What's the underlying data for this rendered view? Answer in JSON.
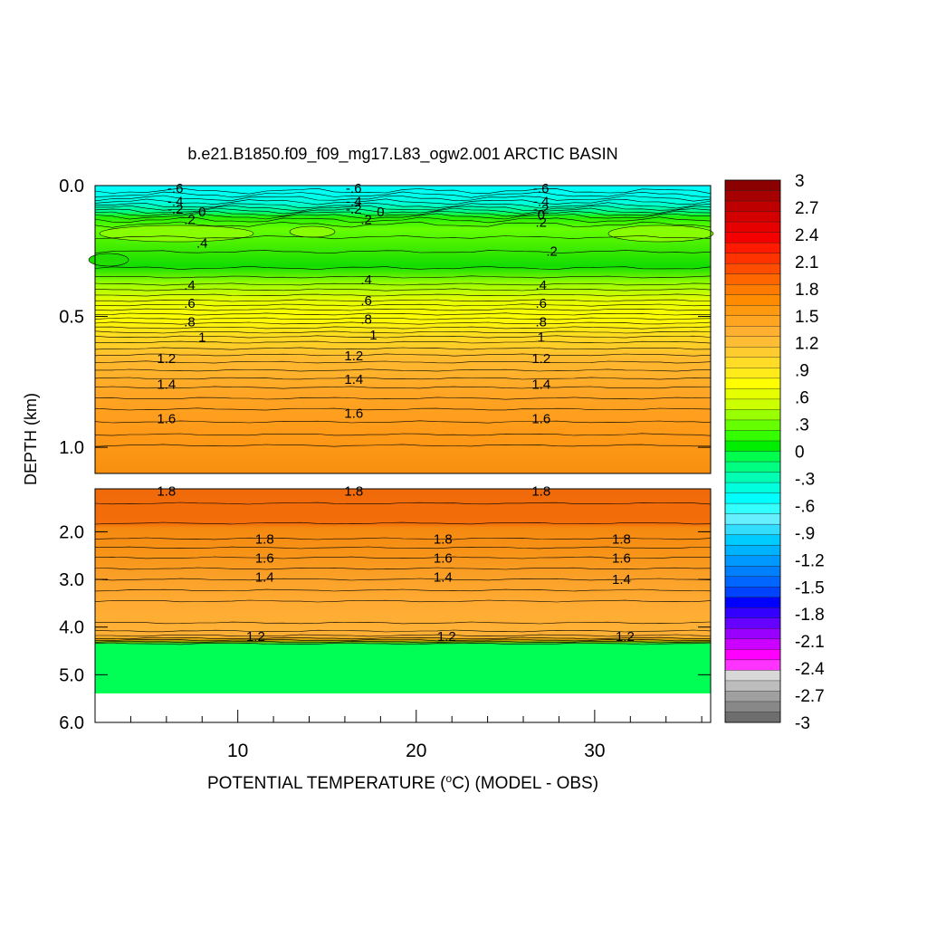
{
  "chart_data": {
    "type": "heatmap",
    "title": "b.e21.B1850.f09_f09_mg17.L83_ogw2.001 ARCTIC BASIN",
    "xlabel": "POTENTIAL TEMPERATURE (",
    "xlabel_sup": "o",
    "xlabel_tail": "C) (MODEL - OBS)",
    "ylabel": "DEPTH (km)",
    "x_ticks": [
      "10",
      "20",
      "30"
    ],
    "x_tick_values": [
      10,
      20,
      30
    ],
    "xlim": [
      2,
      36.5
    ],
    "upper_panel": {
      "ylim": [
        0,
        1.1
      ],
      "y_ticks": [
        "0.0",
        "0.5",
        "1.0"
      ],
      "y_tick_values": [
        0,
        0.5,
        1.0
      ],
      "contour_labels": [
        {
          "text": "-.6",
          "x": 6.5,
          "y": 0.01
        },
        {
          "text": "-.4",
          "x": 6.5,
          "y": 0.06
        },
        {
          "text": "-.2",
          "x": 6.5,
          "y": 0.09
        },
        {
          "text": "0",
          "x": 8.0,
          "y": 0.1
        },
        {
          "text": ".2",
          "x": 7.3,
          "y": 0.13
        },
        {
          "text": ".4",
          "x": 8.0,
          "y": 0.22
        },
        {
          "text": "-.6",
          "x": 16.5,
          "y": 0.01
        },
        {
          "text": "-.4",
          "x": 16.5,
          "y": 0.06
        },
        {
          "text": "-.2",
          "x": 16.5,
          "y": 0.09
        },
        {
          "text": "0",
          "x": 18.0,
          "y": 0.1
        },
        {
          "text": ".2",
          "x": 17.2,
          "y": 0.13
        },
        {
          "text": "-.6",
          "x": 27.0,
          "y": 0.01
        },
        {
          "text": "-.4",
          "x": 27.0,
          "y": 0.06
        },
        {
          "text": "-.2",
          "x": 27.0,
          "y": 0.09
        },
        {
          "text": "0",
          "x": 27.0,
          "y": 0.11
        },
        {
          "text": ".2",
          "x": 27.0,
          "y": 0.14
        },
        {
          "text": ".2",
          "x": 27.6,
          "y": 0.25
        },
        {
          "text": ".4",
          "x": 7.3,
          "y": 0.38
        },
        {
          "text": ".6",
          "x": 7.3,
          "y": 0.45
        },
        {
          "text": ".8",
          "x": 7.3,
          "y": 0.52
        },
        {
          "text": "1",
          "x": 8.0,
          "y": 0.58
        },
        {
          "text": "1.2",
          "x": 6.0,
          "y": 0.66
        },
        {
          "text": "1.4",
          "x": 6.0,
          "y": 0.76
        },
        {
          "text": "1.6",
          "x": 6.0,
          "y": 0.89
        },
        {
          "text": ".4",
          "x": 17.2,
          "y": 0.36
        },
        {
          "text": ".6",
          "x": 17.2,
          "y": 0.44
        },
        {
          "text": ".8",
          "x": 17.2,
          "y": 0.51
        },
        {
          "text": "1",
          "x": 17.6,
          "y": 0.57
        },
        {
          "text": "1.2",
          "x": 16.5,
          "y": 0.65
        },
        {
          "text": "1.4",
          "x": 16.5,
          "y": 0.74
        },
        {
          "text": "1.6",
          "x": 16.5,
          "y": 0.87
        },
        {
          "text": ".4",
          "x": 27.0,
          "y": 0.38
        },
        {
          "text": ".6",
          "x": 27.0,
          "y": 0.45
        },
        {
          "text": ".8",
          "x": 27.0,
          "y": 0.52
        },
        {
          "text": "1",
          "x": 27.0,
          "y": 0.58
        },
        {
          "text": "1.2",
          "x": 27.0,
          "y": 0.66
        },
        {
          "text": "1.4",
          "x": 27.0,
          "y": 0.76
        },
        {
          "text": "1.6",
          "x": 27.0,
          "y": 0.89
        }
      ]
    },
    "lower_panel": {
      "ylim": [
        1.1,
        6.0
      ],
      "y_ticks": [
        "2.0",
        "3.0",
        "4.0",
        "5.0",
        "6.0"
      ],
      "y_tick_values": [
        2,
        3,
        4,
        5,
        6
      ],
      "contour_labels": [
        {
          "text": "1.8",
          "x": 6.0,
          "y": 1.15
        },
        {
          "text": "1.8",
          "x": 16.5,
          "y": 1.15
        },
        {
          "text": "1.8",
          "x": 27.0,
          "y": 1.15
        },
        {
          "text": "1.8",
          "x": 11.5,
          "y": 2.15
        },
        {
          "text": "1.6",
          "x": 11.5,
          "y": 2.55
        },
        {
          "text": "1.4",
          "x": 11.5,
          "y": 2.95
        },
        {
          "text": "1.8",
          "x": 21.5,
          "y": 2.15
        },
        {
          "text": "1.6",
          "x": 21.5,
          "y": 2.55
        },
        {
          "text": "1.4",
          "x": 21.5,
          "y": 2.95
        },
        {
          "text": "1.8",
          "x": 31.5,
          "y": 2.15
        },
        {
          "text": "1.6",
          "x": 31.5,
          "y": 2.55
        },
        {
          "text": "1.4",
          "x": 31.5,
          "y": 3.0
        },
        {
          "text": "1.2",
          "x": 11.0,
          "y": 4.2
        },
        {
          "text": "1.2",
          "x": 21.7,
          "y": 4.2
        },
        {
          "text": "1.2",
          "x": 31.7,
          "y": 4.2
        }
      ]
    },
    "colorbar": {
      "labels": [
        "3",
        "2.7",
        "2.4",
        "2.1",
        "1.8",
        "1.5",
        "1.2",
        ".9",
        ".6",
        ".3",
        "0",
        "-.3",
        "-.6",
        "-.9",
        "-1.2",
        "-1.5",
        "-1.8",
        "-2.1",
        "-2.4",
        "-2.7",
        "-3"
      ],
      "colors": [
        "#8b0000",
        "#a60000",
        "#bf0000",
        "#d40000",
        "#e60000",
        "#f50000",
        "#ff1a00",
        "#ff3300",
        "#ff4d00",
        "#ff6600",
        "#ff7a00",
        "#ff8c00",
        "#ff9a10",
        "#ffa520",
        "#ffb030",
        "#ffbd35",
        "#ffcc30",
        "#ffdc25",
        "#ffeb1a",
        "#ffff00",
        "#e6ff00",
        "#ccff00",
        "#99ff00",
        "#66ff00",
        "#33ff00",
        "#00ee00",
        "#00ff4d",
        "#00ff80",
        "#00ffb3",
        "#00ffdd",
        "#00ffff",
        "#33ffff",
        "#66f0ff",
        "#33ddff",
        "#00ccff",
        "#00b3ff",
        "#0099ff",
        "#0080ff",
        "#0066ff",
        "#0044ff",
        "#0000ff",
        "#3300ff",
        "#6600ff",
        "#9900ff",
        "#cc00ff",
        "#ff00ff",
        "#ff33ff",
        "#d8d8d8",
        "#bdbdbd",
        "#a0a0a0",
        "#888888",
        "#6e6e6e"
      ]
    }
  }
}
